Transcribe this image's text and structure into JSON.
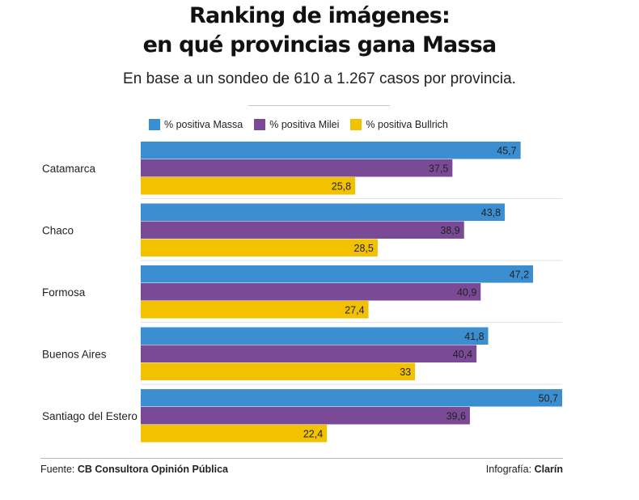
{
  "header": {
    "title_line1": "Ranking de imágenes:",
    "title_line2": "en qué provincias gana Massa",
    "subtitle": "En base a un sondeo de 610 a 1.267 casos por provincia."
  },
  "footer": {
    "source_prefix": "Fuente:",
    "source": "CB Consultora Opinión Pública",
    "credit_prefix": "Infografía:",
    "credit": "Clarín"
  },
  "chart_data": {
    "type": "bar",
    "orientation": "horizontal",
    "title": "Ranking de imágenes: en qué provincias gana Massa",
    "subtitle": "En base a un sondeo de 610 a 1.267 casos por provincia.",
    "categories": [
      "Catamarca",
      "Chaco",
      "Formosa",
      "Buenos Aires",
      "Santiago del Estero"
    ],
    "series": [
      {
        "name": "% positiva Massa",
        "color": "#3b8fd1",
        "values": [
          45.7,
          43.8,
          47.2,
          41.8,
          50.7
        ],
        "labels": [
          "45,7",
          "43,8",
          "47,2",
          "41,8",
          "50,7"
        ]
      },
      {
        "name": "% positiva Milei",
        "color": "#7b4a96",
        "values": [
          37.5,
          38.9,
          40.9,
          40.4,
          39.6
        ],
        "labels": [
          "37,5",
          "38,9",
          "40,9",
          "40,4",
          "39,6"
        ]
      },
      {
        "name": "% positiva Bullrich",
        "color": "#f2c100",
        "values": [
          25.8,
          28.5,
          27.4,
          33,
          22.4
        ],
        "labels": [
          "25,8",
          "28,5",
          "27,4",
          "33",
          "22,4"
        ]
      }
    ],
    "xlim": [
      0,
      50.7
    ],
    "legend_position": "top",
    "grid": false
  }
}
